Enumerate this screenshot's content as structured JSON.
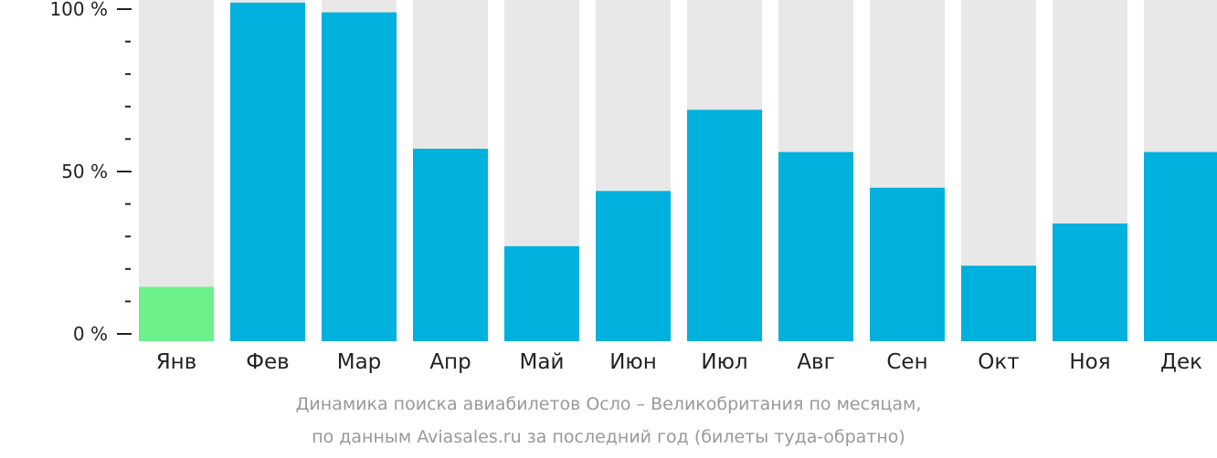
{
  "chart_data": {
    "type": "bar",
    "categories": [
      "Янв",
      "Фев",
      "Мар",
      "Апр",
      "Май",
      "Июн",
      "Июл",
      "Авг",
      "Сен",
      "Окт",
      "Ноя",
      "Дек"
    ],
    "values": [
      14.5,
      102,
      99,
      57,
      27,
      44,
      69,
      56,
      45,
      21,
      34,
      56
    ],
    "ylim": [
      0,
      100
    ],
    "yticks": [
      0,
      50,
      100
    ],
    "ytick_labels": [
      "0 %",
      "50 %",
      "100 %"
    ],
    "minor_ticks": [
      10,
      20,
      30,
      40,
      60,
      70,
      80,
      90
    ],
    "grid": false,
    "highlight_index": 0,
    "colors": {
      "bar": "#00b0dd",
      "highlight": "#6cf18b",
      "background_bar": "#e8e8e8",
      "axis": "#222222",
      "caption": "#999999"
    }
  },
  "caption": {
    "line1": "Динамика поиска авиабилетов Осло – Великобритания по месяцам,",
    "line2": "по данным Aviasales.ru за последний год (билеты туда-обратно)"
  }
}
